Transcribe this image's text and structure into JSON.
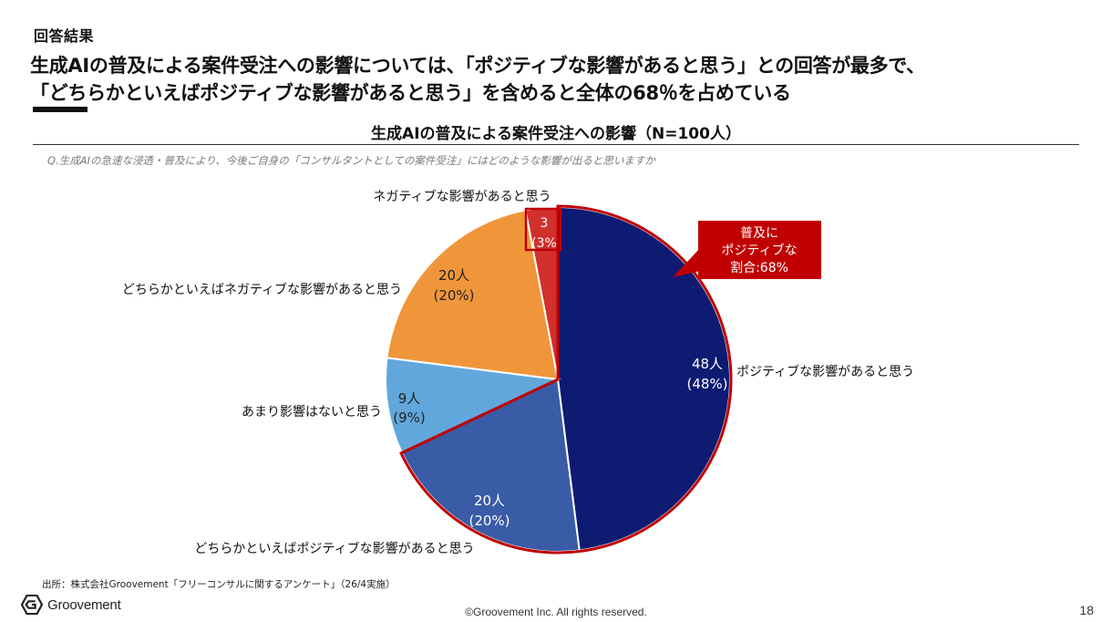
{
  "section_label": "回答結果",
  "headline": {
    "line1": "生成AIの普及による案件受注への影響については、「ポジティブな影響があると思う」との回答が最多で、",
    "line2": "「どちらかといえばポジティブな影響があると思う」を含めると全体の68％を占めている"
  },
  "question": "Q.生成AIの急速な浸透・普及により、今後ご自身の「コンサルタントとしての案件受注」にはどのような影響が出ると思いますか",
  "callout": {
    "lines": [
      "普及に",
      "ポジティブな",
      "割合:68%"
    ]
  },
  "footer": {
    "source": "出所：株式会社Groovement「フリーコンサルに関するアンケート」（26/4実施）",
    "logo_text": "Groovement",
    "copyright": "©Groovement Inc. All rights reserved.",
    "page_number": "18"
  },
  "colors": {
    "positive": "#0d1b73",
    "somewhat_positive": "#3a5ba6",
    "neutral": "#62a7dc",
    "somewhat_negative": "#f0963a",
    "negative": "#d2302c",
    "highlight": "#c00000"
  },
  "chart_data": {
    "type": "pie",
    "title": "生成AIの普及による案件受注への影響（N=100人）",
    "n": 100,
    "slices": [
      {
        "label": "ポジティブな影響があると思う",
        "count": 48,
        "value_text": "48人",
        "pct_text": "(48%)",
        "color": "#0d1b73"
      },
      {
        "label": "どちらかといえばポジティブな影響があると思う",
        "count": 20,
        "value_text": "20人",
        "pct_text": "(20%)",
        "color": "#3a5ba6"
      },
      {
        "label": "あまり影響はないと思う",
        "count": 9,
        "value_text": "9人",
        "pct_text": "(9%)",
        "color": "#62a7dc"
      },
      {
        "label": "どちらかといえばネガティブな影響があると思う",
        "count": 20,
        "value_text": "20人",
        "pct_text": "(20%)",
        "color": "#f0963a"
      },
      {
        "label": "ネガティブな影響があると思う",
        "count": 3,
        "value_text": "3",
        "pct_text": "(3%",
        "color": "#d2302c"
      }
    ],
    "highlight_group": [
      "ポジティブな影響があると思う",
      "どちらかといえばポジティブな影響があると思う"
    ],
    "highlight_share": 68
  }
}
